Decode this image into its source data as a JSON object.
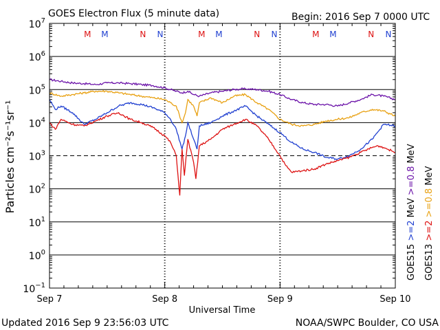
{
  "header": {
    "title": "GOES Electron Flux (5 minute data)",
    "begin": "Begin: 2016 Sep 7 0000 UTC"
  },
  "footer": {
    "updated": "Updated 2016 Sep  9 23:56:03 UTC",
    "credit": "NOAA/SWPC Boulder, CO USA"
  },
  "colors": {
    "goes15_2mev": "#1f3fd0",
    "goes13_2mev": "#dd1111",
    "goes15_08mev": "#6a11a8",
    "goes13_08mev": "#e8a010",
    "grid": "#000000",
    "marker_m": "#dd1111",
    "marker_m2": "#1f3fd0"
  },
  "chart_data": {
    "type": "line",
    "title": "GOES Electron Flux (5 minute data)",
    "xlabel": "Universal Time",
    "ylabel": "Particles cm⁻²s⁻¹sr⁻¹",
    "ylim_log10": [
      -1,
      7
    ],
    "xlim_days": [
      0,
      3
    ],
    "x_tick_labels": [
      "Sep 7",
      "Sep 8",
      "Sep 9",
      "Sep 10"
    ],
    "y_tick_labels": [
      {
        "base": "10",
        "exp": "7"
      },
      {
        "base": "10",
        "exp": "6"
      },
      {
        "base": "10",
        "exp": "5"
      },
      {
        "base": "10",
        "exp": "4"
      },
      {
        "base": "10",
        "exp": "3"
      },
      {
        "base": "10",
        "exp": "2"
      },
      {
        "base": "10",
        "exp": "1"
      },
      {
        "base": "10",
        "exp": "0"
      },
      {
        "base": "10",
        "exp": "−1"
      }
    ],
    "threshold_log10": 3,
    "markers": [
      {
        "label": "M",
        "day": 0.33,
        "color": "#dd1111"
      },
      {
        "label": "M",
        "day": 0.48,
        "color": "#1f3fd0"
      },
      {
        "label": "N",
        "day": 0.81,
        "color": "#dd1111"
      },
      {
        "label": "N",
        "day": 0.96,
        "color": "#1f3fd0"
      },
      {
        "label": "M",
        "day": 1.32,
        "color": "#dd1111"
      },
      {
        "label": "M",
        "day": 1.47,
        "color": "#1f3fd0"
      },
      {
        "label": "N",
        "day": 1.8,
        "color": "#dd1111"
      },
      {
        "label": "N",
        "day": 1.95,
        "color": "#1f3fd0"
      },
      {
        "label": "M",
        "day": 2.31,
        "color": "#dd1111"
      },
      {
        "label": "M",
        "day": 2.46,
        "color": "#1f3fd0"
      },
      {
        "label": "N",
        "day": 2.79,
        "color": "#dd1111"
      },
      {
        "label": "N",
        "day": 2.94,
        "color": "#1f3fd0"
      }
    ],
    "legend": [
      {
        "satellite": "GOES15",
        "channel": ">=2",
        "unit": "MeV",
        "color": "#1f3fd0"
      },
      {
        "satellite": "GOES15",
        "channel": ">=0.8",
        "unit": "MeV",
        "color": "#6a11a8"
      },
      {
        "satellite": "GOES13",
        "channel": ">=2",
        "unit": "",
        "color": "#dd1111"
      },
      {
        "satellite": "GOES13",
        "channel": ">=0.8",
        "unit": "MeV",
        "color": "#e8a010"
      }
    ],
    "series": [
      {
        "name": "GOES15 >=0.8 MeV",
        "color": "#6a11a8",
        "x": [
          0,
          0.1,
          0.2,
          0.3,
          0.4,
          0.5,
          0.6,
          0.7,
          0.8,
          0.9,
          1.0,
          1.1,
          1.15,
          1.2,
          1.25,
          1.3,
          1.4,
          1.5,
          1.6,
          1.7,
          1.8,
          1.9,
          2.0,
          2.1,
          2.2,
          2.3,
          2.4,
          2.5,
          2.6,
          2.7,
          2.8,
          2.9,
          3.0
        ],
        "y": [
          5.3,
          5.25,
          5.2,
          5.18,
          5.15,
          5.2,
          5.2,
          5.18,
          5.15,
          5.12,
          5.05,
          4.95,
          4.9,
          4.95,
          4.85,
          4.8,
          4.9,
          4.95,
          5.0,
          5.02,
          5.0,
          4.95,
          4.85,
          4.7,
          4.6,
          4.55,
          4.55,
          4.5,
          4.6,
          4.7,
          4.85,
          4.8,
          4.7
        ]
      },
      {
        "name": "GOES13 >=0.8 MeV",
        "color": "#e8a010",
        "x": [
          0,
          0.1,
          0.2,
          0.3,
          0.4,
          0.5,
          0.6,
          0.7,
          0.8,
          0.9,
          1.0,
          1.05,
          1.1,
          1.15,
          1.18,
          1.2,
          1.25,
          1.28,
          1.3,
          1.4,
          1.5,
          1.6,
          1.7,
          1.8,
          1.9,
          2.0,
          2.1,
          2.2,
          2.3,
          2.4,
          2.5,
          2.6,
          2.7,
          2.8,
          2.9,
          3.0
        ],
        "y": [
          4.9,
          4.8,
          4.85,
          4.9,
          4.95,
          4.95,
          4.9,
          4.85,
          4.8,
          4.75,
          4.7,
          4.6,
          4.5,
          4.0,
          4.3,
          4.7,
          4.5,
          4.2,
          4.6,
          4.75,
          4.6,
          4.8,
          4.85,
          4.6,
          4.4,
          4.1,
          3.95,
          3.9,
          3.95,
          4.05,
          4.1,
          4.15,
          4.3,
          4.4,
          4.35,
          4.2
        ]
      },
      {
        "name": "GOES15 >=2 MeV",
        "color": "#1f3fd0",
        "x": [
          0,
          0.05,
          0.1,
          0.2,
          0.3,
          0.4,
          0.5,
          0.6,
          0.7,
          0.8,
          0.9,
          1.0,
          1.05,
          1.1,
          1.15,
          1.18,
          1.2,
          1.25,
          1.28,
          1.3,
          1.4,
          1.5,
          1.6,
          1.7,
          1.8,
          1.9,
          2.0,
          2.1,
          2.2,
          2.3,
          2.4,
          2.5,
          2.6,
          2.7,
          2.8,
          2.9,
          3.0
        ],
        "y": [
          4.7,
          4.4,
          4.5,
          4.3,
          3.95,
          4.1,
          4.3,
          4.5,
          4.6,
          4.55,
          4.45,
          4.3,
          4.1,
          3.8,
          3.2,
          3.6,
          4.0,
          3.5,
          3.2,
          3.9,
          4.0,
          4.2,
          4.35,
          4.5,
          4.2,
          3.95,
          3.7,
          3.4,
          3.2,
          3.1,
          2.95,
          2.9,
          3.0,
          3.2,
          3.5,
          3.95,
          3.9
        ]
      },
      {
        "name": "GOES13 >=2 MeV",
        "color": "#dd1111",
        "x": [
          0,
          0.05,
          0.1,
          0.2,
          0.3,
          0.4,
          0.5,
          0.6,
          0.7,
          0.8,
          0.9,
          1.0,
          1.05,
          1.1,
          1.13,
          1.15,
          1.17,
          1.2,
          1.25,
          1.27,
          1.3,
          1.4,
          1.5,
          1.6,
          1.7,
          1.8,
          1.9,
          2.0,
          2.05,
          2.1,
          2.2,
          2.3,
          2.4,
          2.5,
          2.6,
          2.7,
          2.8,
          2.85,
          2.9,
          3.0
        ],
        "y": [
          4.0,
          3.8,
          4.1,
          3.95,
          3.9,
          4.05,
          4.2,
          4.3,
          4.1,
          4.0,
          3.85,
          3.6,
          3.4,
          3.0,
          1.8,
          3.2,
          2.4,
          3.5,
          2.8,
          2.3,
          3.3,
          3.5,
          3.8,
          3.95,
          4.1,
          3.9,
          3.5,
          3.0,
          2.7,
          2.5,
          2.55,
          2.6,
          2.75,
          2.85,
          2.95,
          3.1,
          3.25,
          3.3,
          3.25,
          3.1
        ]
      }
    ]
  }
}
